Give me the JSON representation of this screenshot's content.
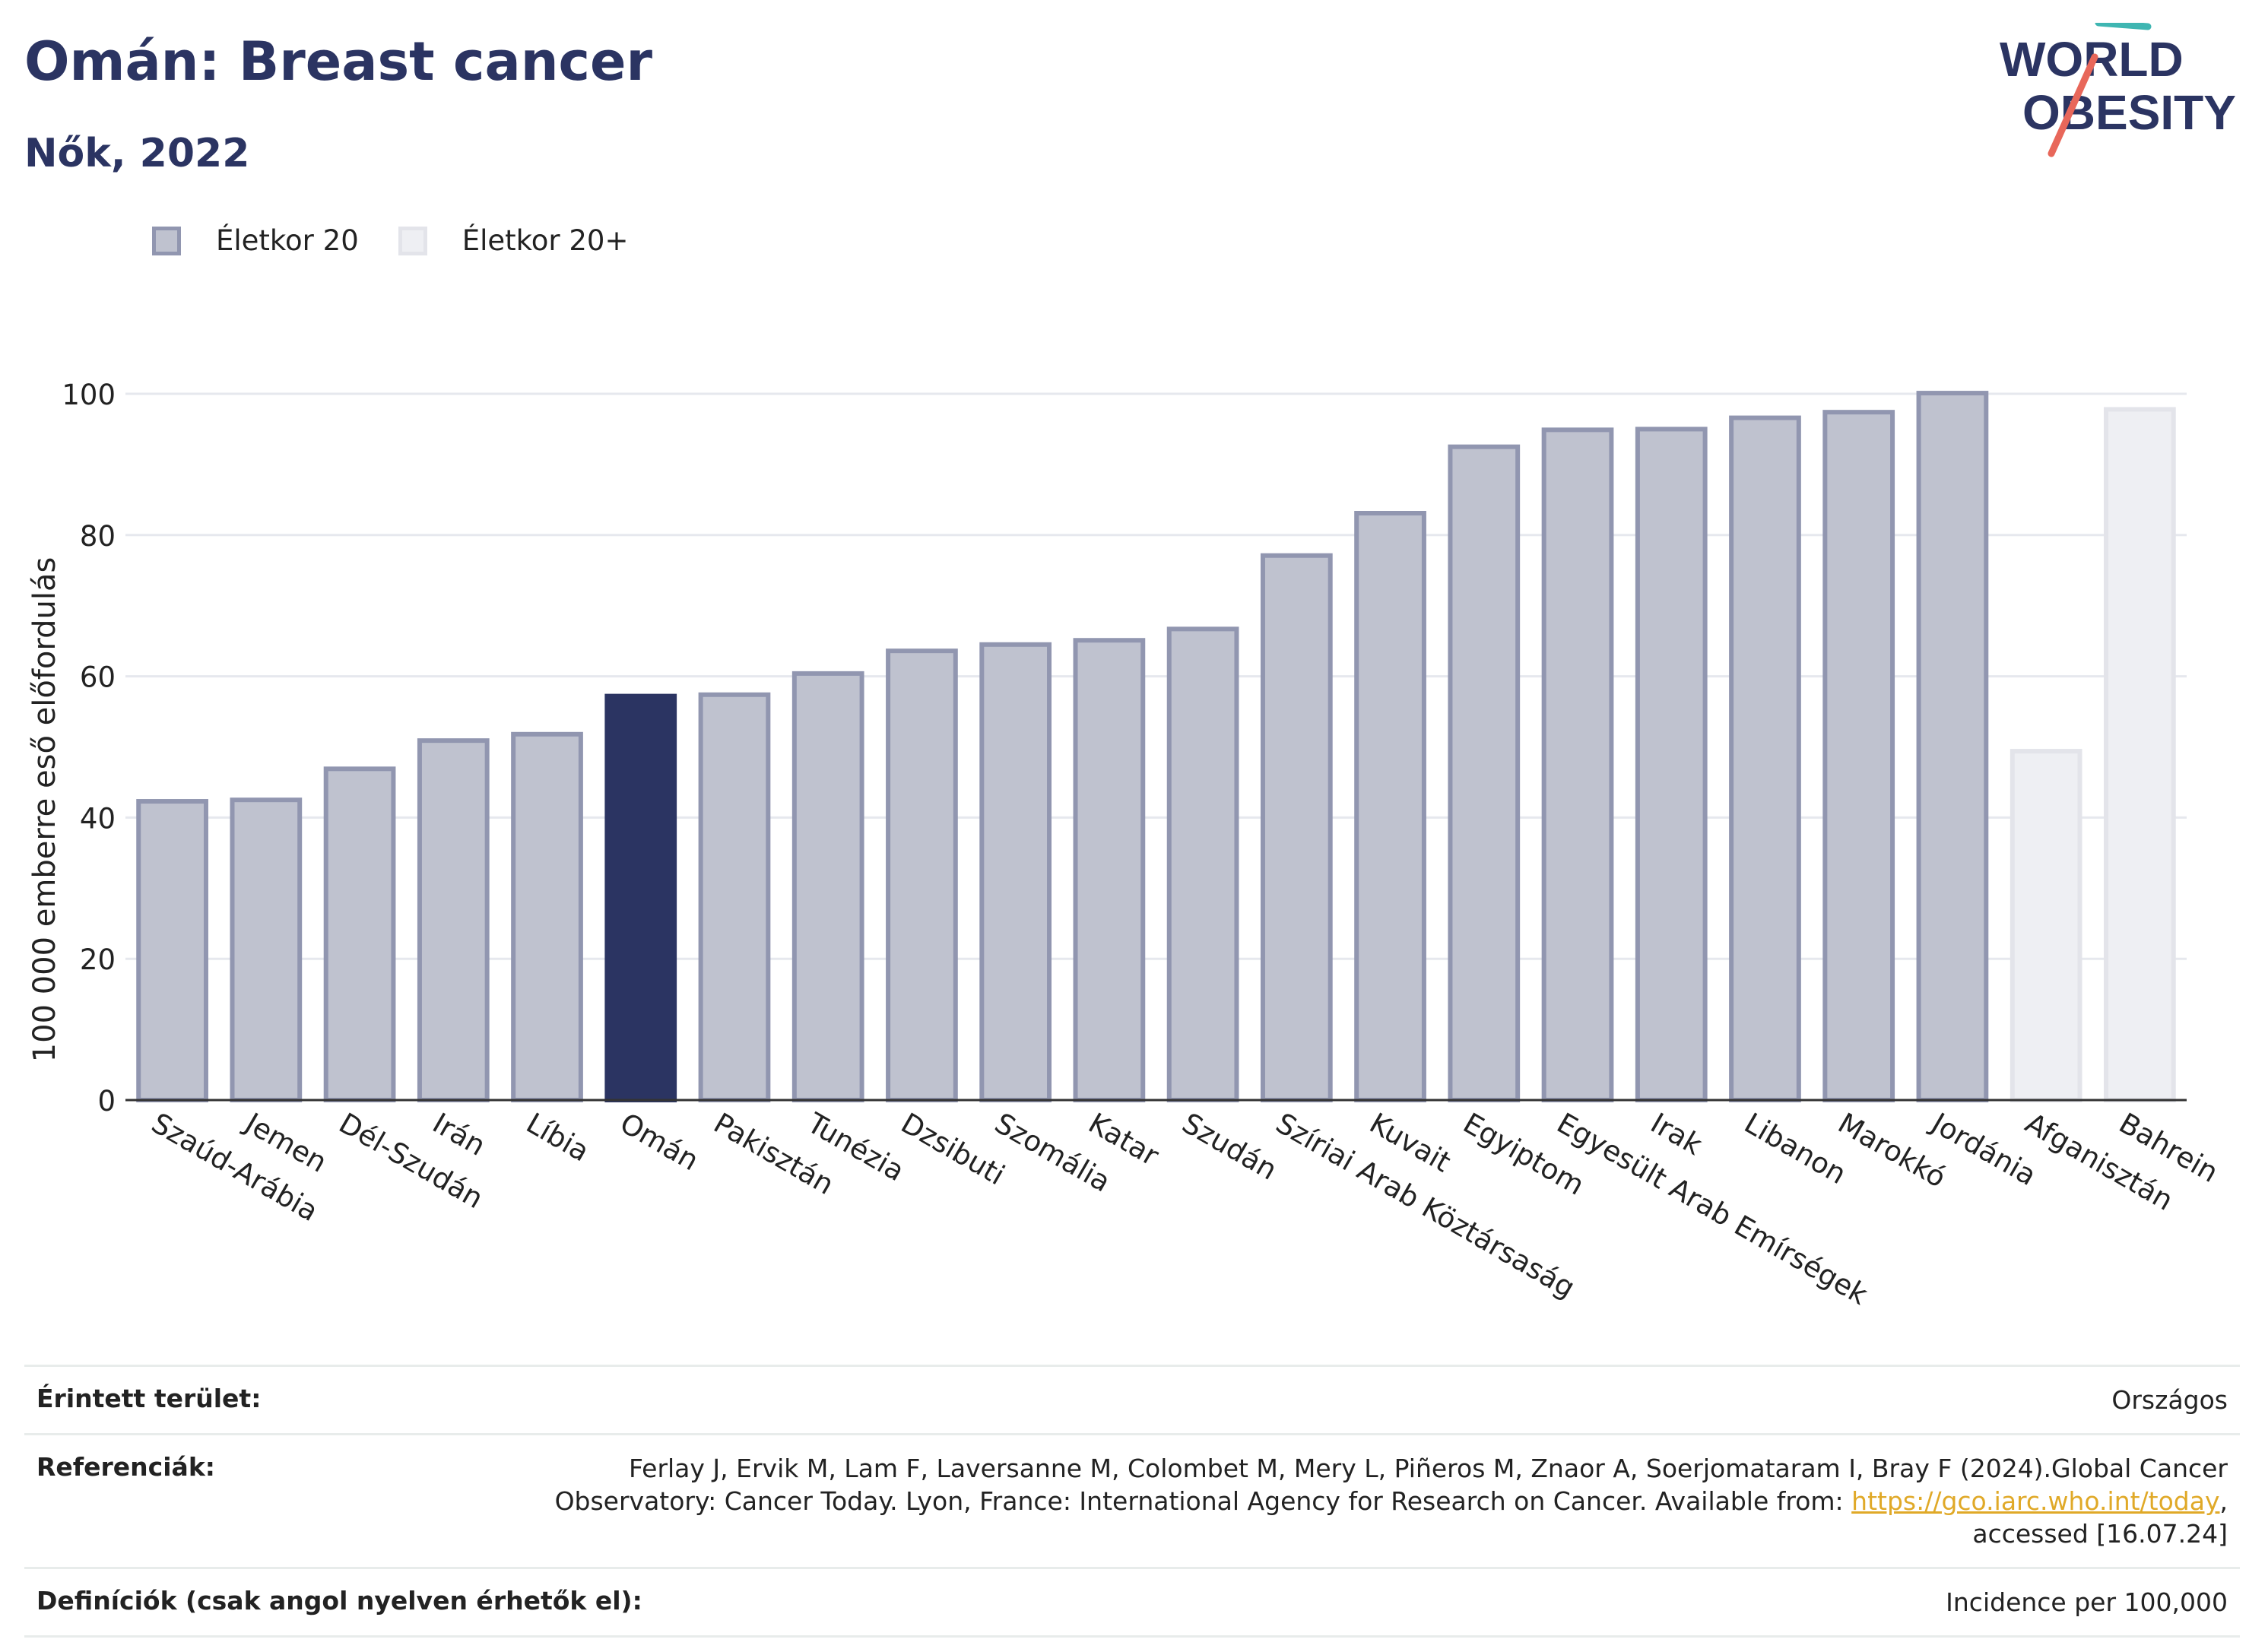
{
  "header": {
    "title": "Omán: Breast cancer",
    "subtitle": "Nők, 2022"
  },
  "logo": {
    "line1": "WORLD",
    "line2": "OBESITY"
  },
  "legend": [
    {
      "label": "Életkor 20",
      "color": "#bfc2cf"
    },
    {
      "label": "Életkor 20+",
      "color": "#eeeff3"
    }
  ],
  "chart_data": {
    "type": "bar",
    "ylabel": "100 000 emberre eső előfordulás",
    "ylim": [
      0,
      100
    ],
    "yticks": [
      0,
      20,
      40,
      60,
      80,
      100
    ],
    "grid": true,
    "legend_position": "top-left",
    "categories": [
      "Szaúd-Arábia",
      "Jemen",
      "Dél-Szudán",
      "Irán",
      "Líbia",
      "Omán",
      "Pakisztán",
      "Tunézia",
      "Dzsibuti",
      "Szomália",
      "Katar",
      "Szudán",
      "Szíriai Arab Köztársaság",
      "Kuvait",
      "Egyiptom",
      "Egyesült Arab Emírségek",
      "Irak",
      "Libanon",
      "Marokkó",
      "Jordánia",
      "Afganisztán",
      "Bahrein"
    ],
    "values": [
      42.3,
      42.5,
      46.9,
      50.9,
      51.8,
      57.2,
      57.4,
      60.4,
      63.6,
      64.5,
      65.1,
      66.7,
      77.1,
      83.1,
      92.5,
      94.9,
      95.0,
      96.6,
      97.4,
      100.1,
      49.4,
      97.8
    ],
    "series_of_each": [
      "Életkor 20",
      "Életkor 20",
      "Életkor 20",
      "Életkor 20",
      "Életkor 20",
      "Életkor 20",
      "Életkor 20",
      "Életkor 20",
      "Életkor 20",
      "Életkor 20",
      "Életkor 20",
      "Életkor 20",
      "Életkor 20",
      "Életkor 20",
      "Életkor 20",
      "Életkor 20",
      "Életkor 20",
      "Életkor 20",
      "Életkor 20",
      "Életkor 20",
      "Életkor 20+",
      "Életkor 20+"
    ],
    "highlight": "Omán",
    "colors": {
      "age20_fill": "#bfc2cf",
      "age20_stroke": "#9196b0",
      "age20plus_fill": "#eeeff3",
      "age20plus_stroke": "#e3e4ea",
      "highlight_fill": "#2b3462"
    }
  },
  "footer": {
    "area_label": "Érintett terület:",
    "area_value": "Országos",
    "ref_label": "Referenciák:",
    "ref_line1": "Ferlay J, Ervik M, Lam F, Laversanne M, Colombet M, Mery L, Piñeros M, Znaor A, Soerjomataram I, Bray F (2024).Global Cancer",
    "ref_line2_pre": "Observatory: Cancer Today. Lyon, France: International Agency for Research on Cancer. Available from: ",
    "ref_link": "https://gco.iarc.who.int/today",
    "ref_line2_post": ",",
    "ref_line3": "accessed [16.07.24]",
    "def_label": "Definíciók (csak angol nyelven érhetők el):",
    "def_value": "Incidence per 100,000"
  }
}
